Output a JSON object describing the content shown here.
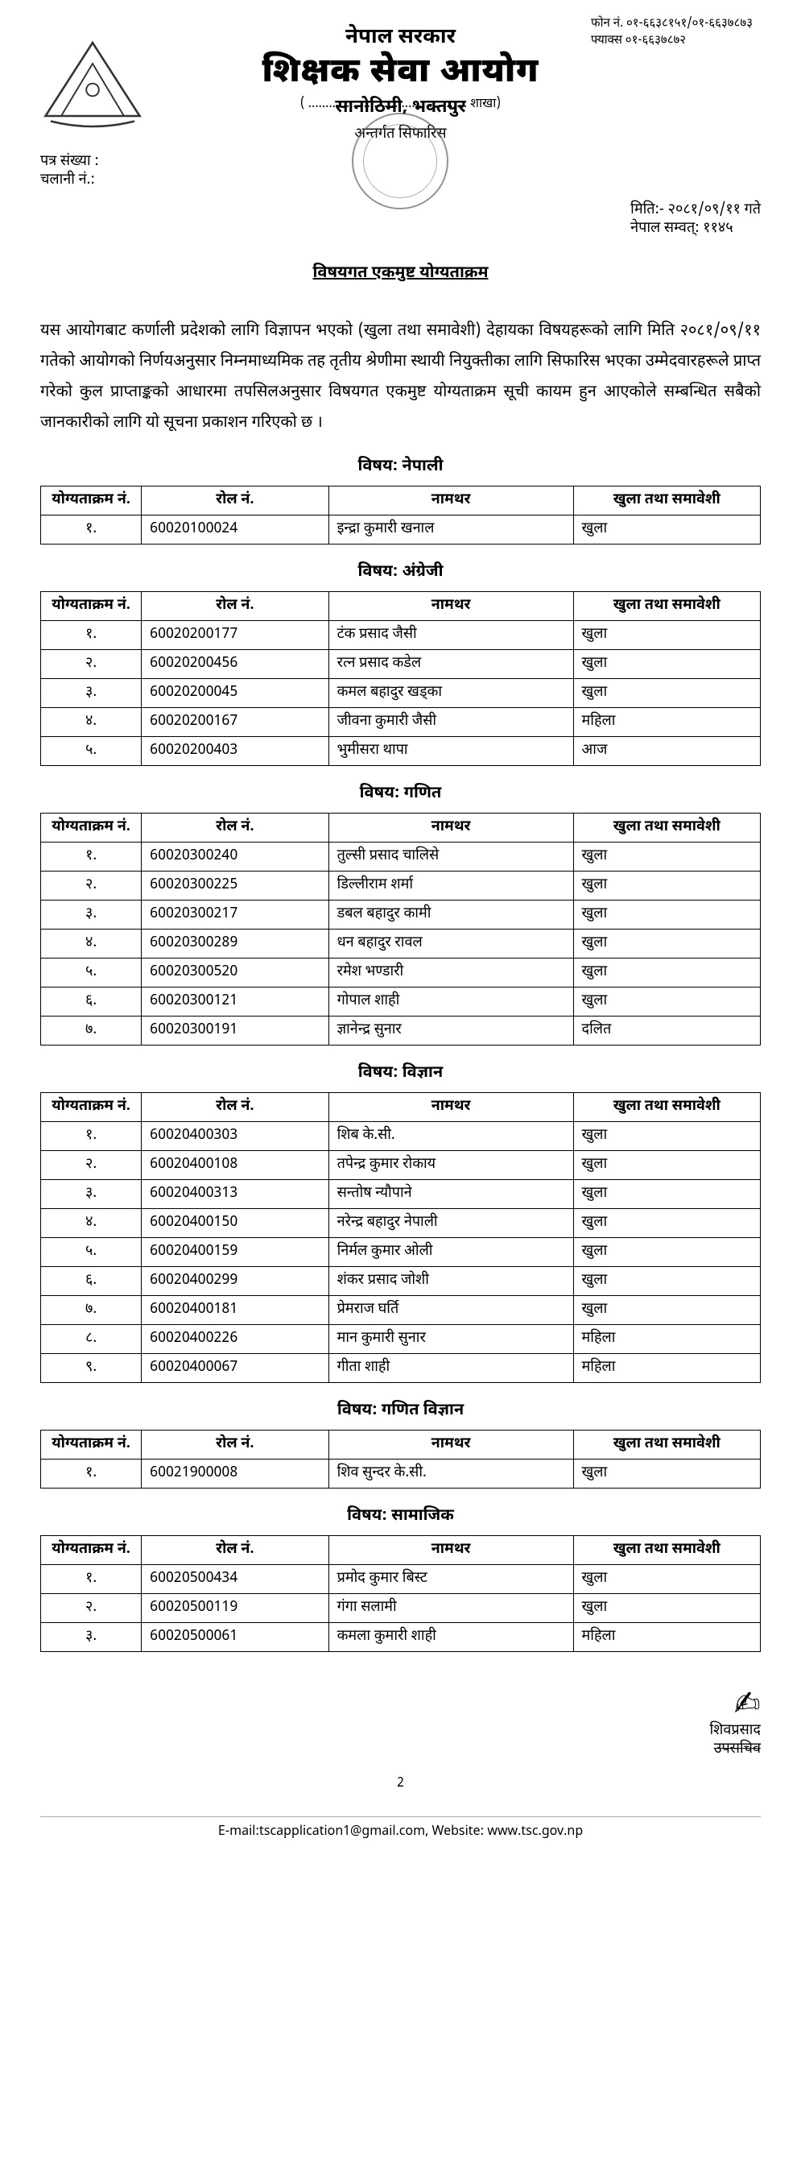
{
  "contact": {
    "phone_label": "फोन नं. ०१-६६३८१५१/०१-६६३७८७३",
    "fax_label": "फ्याक्स ०१-६६३७८७२"
  },
  "header": {
    "gov": "नेपाल सरकार",
    "org": "शिक्षक सेवा आयोग",
    "address": "सानोठिमी, भक्तपुर",
    "branch_line_prefix": "(",
    "branch_line_suffix": "शाखा)",
    "letter_no_label": "पत्र संख्या :",
    "chalani_label": "चलानी नं.:",
    "stamp_overlay": "अन्तर्गत सिफारिस",
    "subject_title": "विषयगत एकमुष्ट योग्यताक्रम",
    "date_line": "मिति:- २०८१/०९/११ गते",
    "sambat_line": "नेपाल सम्वत्: ११४५"
  },
  "body_text": "यस आयोगबाट कर्णाली प्रदेशको लागि विज्ञापन भएको (खुला तथा समावेशी) देहायका विषयहरूको लागि मिति २०८१/०९/११ गतेको आयोगको निर्णयअनुसार निम्नमाध्यमिक तह तृतीय श्रेणीमा स्थायी नियुक्तीका लागि सिफारिस भएका उम्मेदवारहरूले प्राप्त गरेको कुल प्राप्ताङ्कको आधारमा तपसिलअनुसार विषयगत एकमुष्ट योग्यताक्रम सूची कायम हुन आएकोले सम्बन्धित सबैको जानकारीको लागि यो सूचना प्रकाशन गरिएको छ ।",
  "columns": {
    "rank": "योग्यताक्रम नं.",
    "roll": "रोल नं.",
    "name": "नामथर",
    "category": "खुला तथा समावेशी"
  },
  "sections": [
    {
      "heading": "विषय: नेपाली",
      "rows": [
        {
          "rank": "१.",
          "roll": "60020100024",
          "name": "इन्द्रा कुमारी खनाल",
          "cat": "खुला"
        }
      ]
    },
    {
      "heading": "विषय: अंग्रेजी",
      "rows": [
        {
          "rank": "१.",
          "roll": "60020200177",
          "name": "टंक प्रसाद जैसी",
          "cat": "खुला"
        },
        {
          "rank": "२.",
          "roll": "60020200456",
          "name": "रत्न प्रसाद कडेल",
          "cat": "खुला"
        },
        {
          "rank": "३.",
          "roll": "60020200045",
          "name": "कमल बहादुर खड्का",
          "cat": "खुला"
        },
        {
          "rank": "४.",
          "roll": "60020200167",
          "name": "जीवना कुमारी जैसी",
          "cat": "महिला"
        },
        {
          "rank": "५.",
          "roll": "60020200403",
          "name": "भुमीसरा थापा",
          "cat": "आज"
        }
      ]
    },
    {
      "heading": "विषय: गणित",
      "rows": [
        {
          "rank": "१.",
          "roll": "60020300240",
          "name": "तुल्सी प्रसाद चालिसे",
          "cat": "खुला"
        },
        {
          "rank": "२.",
          "roll": "60020300225",
          "name": "डिल्लीराम शर्मा",
          "cat": "खुला"
        },
        {
          "rank": "३.",
          "roll": "60020300217",
          "name": "डबल बहादुर कामी",
          "cat": "खुला"
        },
        {
          "rank": "४.",
          "roll": "60020300289",
          "name": "धन बहादुर रावल",
          "cat": "खुला"
        },
        {
          "rank": "५.",
          "roll": "60020300520",
          "name": "रमेश भण्डारी",
          "cat": "खुला"
        },
        {
          "rank": "६.",
          "roll": "60020300121",
          "name": "गोपाल शाही",
          "cat": "खुला"
        },
        {
          "rank": "७.",
          "roll": "60020300191",
          "name": "ज्ञानेन्द्र सुनार",
          "cat": "दलित"
        }
      ]
    },
    {
      "heading": "विषय: विज्ञान",
      "rows": [
        {
          "rank": "१.",
          "roll": "60020400303",
          "name": "शिब के.सी.",
          "cat": "खुला"
        },
        {
          "rank": "२.",
          "roll": "60020400108",
          "name": "तपेन्द्र कुमार रोकाय",
          "cat": "खुला"
        },
        {
          "rank": "३.",
          "roll": "60020400313",
          "name": "सन्तोष न्यौपाने",
          "cat": "खुला"
        },
        {
          "rank": "४.",
          "roll": "60020400150",
          "name": "नरेन्द्र बहादुर नेपाली",
          "cat": "खुला"
        },
        {
          "rank": "५.",
          "roll": "60020400159",
          "name": "निर्मल कुमार ओली",
          "cat": "खुला"
        },
        {
          "rank": "६.",
          "roll": "60020400299",
          "name": "शंकर प्रसाद जोशी",
          "cat": "खुला"
        },
        {
          "rank": "७.",
          "roll": "60020400181",
          "name": "प्रेमराज घर्ति",
          "cat": "खुला"
        },
        {
          "rank": "८.",
          "roll": "60020400226",
          "name": "मान कुमारी सुनार",
          "cat": "महिला"
        },
        {
          "rank": "९.",
          "roll": "60020400067",
          "name": "गीता शाही",
          "cat": "महिला"
        }
      ]
    },
    {
      "heading": "विषय: गणित विज्ञान",
      "rows": [
        {
          "rank": "१.",
          "roll": "60021900008",
          "name": "शिव सुन्दर के.सी.",
          "cat": "खुला"
        }
      ]
    },
    {
      "heading": "विषय: सामाजिक",
      "rows": [
        {
          "rank": "१.",
          "roll": "60020500434",
          "name": "प्रमोद कुमार बिस्ट",
          "cat": "खुला"
        },
        {
          "rank": "२.",
          "roll": "60020500119",
          "name": "गंगा सलामी",
          "cat": "खुला"
        },
        {
          "rank": "३.",
          "roll": "60020500061",
          "name": "कमला कुमारी शाही",
          "cat": "महिला"
        }
      ]
    }
  ],
  "signature": {
    "name": "शिवप्रसाद",
    "title": "उपसचिव"
  },
  "page_number": "2",
  "footer": "E-mail:tscapplication1@gmail.com, Website: www.tsc.gov.np"
}
